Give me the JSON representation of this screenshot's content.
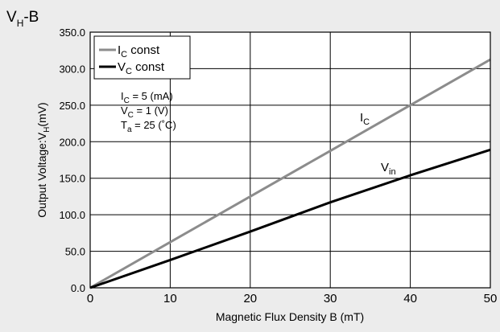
{
  "chart_data": {
    "type": "line",
    "title": "V",
    "title_subscript": "H",
    "title_suffix": "-B",
    "xlabel": "Magnetic Flux Density B (mT)",
    "ylabel": "Output Voltage:V",
    "ylabel_subscript": "H",
    "ylabel_suffix": "(mV)",
    "xlim": [
      0,
      50
    ],
    "ylim": [
      0,
      350
    ],
    "xticks": [
      "0",
      "10",
      "20",
      "30",
      "40",
      "50"
    ],
    "yticks": [
      "0.0",
      "50.0",
      "100.0",
      "150.0",
      "200.0",
      "250.0",
      "300.0",
      "350.0"
    ],
    "grid": true,
    "legend_position": "top-left",
    "series": [
      {
        "name": "I",
        "name_subscript": "C",
        "name_suffix": " const",
        "color": "#8c8c8c",
        "x": [
          0,
          10,
          20,
          30,
          40,
          50
        ],
        "y": [
          0,
          62.5,
          125,
          187.5,
          250,
          312.5
        ]
      },
      {
        "name": "V",
        "name_subscript": "C",
        "name_suffix": " const",
        "color": "#000000",
        "x": [
          0,
          10,
          20,
          30,
          40,
          50
        ],
        "y": [
          0,
          38,
          77,
          117,
          154,
          189
        ]
      }
    ],
    "conditions": [
      {
        "label": "I",
        "sub": "C",
        "text": " =  5  (mA)"
      },
      {
        "label": "V",
        "sub": "C",
        "text": " =  1  (V)"
      },
      {
        "label": "T",
        "sub": "a",
        "text": " = 25 (˚C)"
      }
    ],
    "annotations": [
      {
        "text": "I",
        "sub": "C",
        "series": 0,
        "at_x": 35
      },
      {
        "text": "V",
        "sub": "in",
        "series": 1,
        "at_x": 38
      }
    ]
  }
}
